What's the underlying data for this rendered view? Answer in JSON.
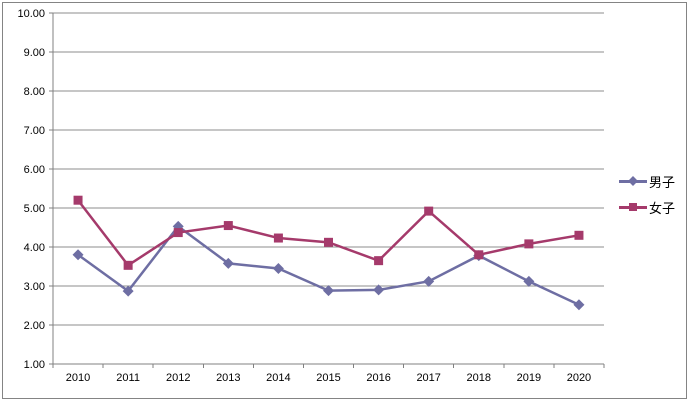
{
  "chart_data": {
    "type": "line",
    "title": "",
    "categories": [
      "2010",
      "2011",
      "2012",
      "2013",
      "2014",
      "2015",
      "2016",
      "2017",
      "2018",
      "2019",
      "2020"
    ],
    "series": [
      {
        "name": "男子",
        "marker": "diamond",
        "color": "#6E6EA3",
        "values": [
          3.8,
          2.87,
          4.53,
          3.58,
          3.45,
          2.88,
          2.9,
          3.12,
          3.78,
          3.12,
          2.52
        ]
      },
      {
        "name": "女子",
        "marker": "square",
        "color": "#A53A6B",
        "values": [
          5.2,
          3.53,
          4.37,
          4.55,
          4.23,
          4.12,
          3.65,
          4.92,
          3.8,
          4.08,
          4.3
        ]
      }
    ],
    "y_ticks": [
      "10.00",
      "9.00",
      "8.00",
      "7.00",
      "6.00",
      "5.00",
      "4.00",
      "3.00",
      "2.00",
      "1.00"
    ],
    "ylim": [
      1,
      10
    ],
    "xlabel": "",
    "ylabel": "",
    "grid": true,
    "legend_position": "right",
    "colors": {
      "background": "#FFFFFF",
      "chart_border": "#848484",
      "grid_line": "#8C8C8C",
      "axis_line": "#808080",
      "tick_label": "#000000"
    }
  }
}
